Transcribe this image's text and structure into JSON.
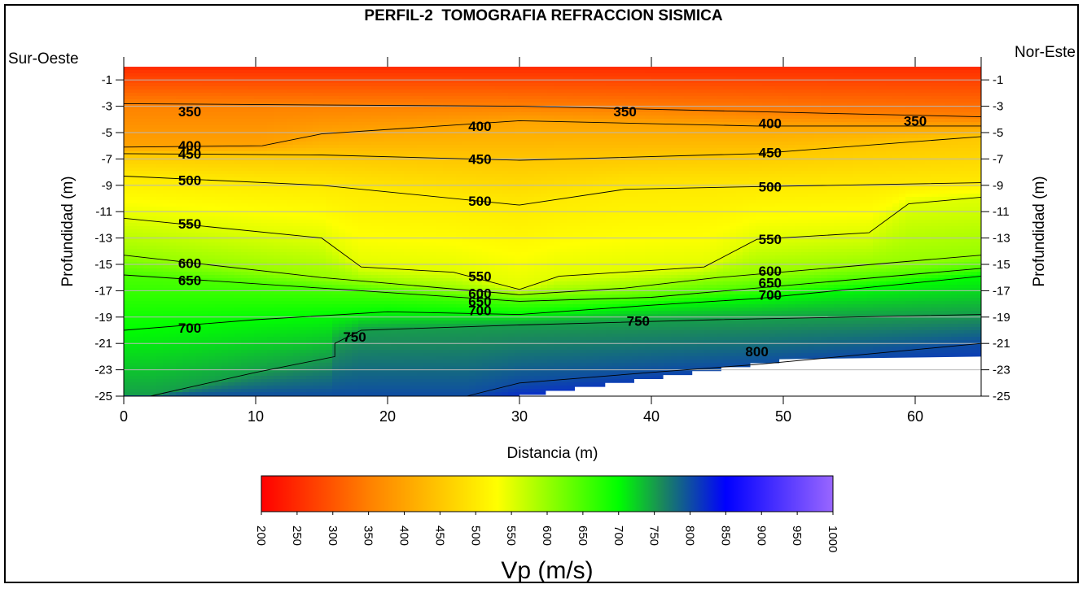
{
  "chart_data": {
    "type": "heatmap",
    "title": "PERFIL-2  TOMOGRAFIA REFRACCION SISMICA",
    "left_label": "Sur-Oeste",
    "right_label": "Nor-Este",
    "xlabel": "Distancia (m)",
    "ylabel": "Profundidad (m)",
    "xlim": [
      0,
      65
    ],
    "ylim": [
      -25,
      0
    ],
    "x_ticks": [
      0,
      10,
      20,
      30,
      40,
      50,
      60
    ],
    "y_ticks": [
      -1,
      -3,
      -5,
      -7,
      -9,
      -11,
      -13,
      -15,
      -17,
      -19,
      -21,
      -23,
      -25
    ],
    "grid": true,
    "colorbar": {
      "title": "Vp (m/s)",
      "min": 200,
      "max": 1000,
      "ticks": [
        200,
        250,
        300,
        350,
        400,
        450,
        500,
        550,
        600,
        650,
        700,
        750,
        800,
        850,
        900,
        950,
        1000
      ],
      "colors": [
        {
          "value": 200,
          "color": "#ff0000"
        },
        {
          "value": 350,
          "color": "#ff8000"
        },
        {
          "value": 530,
          "color": "#ffff00"
        },
        {
          "value": 700,
          "color": "#00ff00"
        },
        {
          "value": 760,
          "color": "#1a8a5a"
        },
        {
          "value": 850,
          "color": "#0000ff"
        },
        {
          "value": 1000,
          "color": "#9966ff"
        }
      ]
    },
    "contours": [
      {
        "value": 350,
        "points": [
          [
            0,
            -2.8
          ],
          [
            30,
            -3.0
          ],
          [
            65,
            -3.8
          ]
        ],
        "labels": [
          [
            5,
            -3.4
          ],
          [
            38,
            -3.4
          ],
          [
            60,
            -4.1
          ]
        ]
      },
      {
        "value": 400,
        "points": [
          [
            0,
            -6.1
          ],
          [
            10.5,
            -6.0
          ],
          [
            15,
            -5.1
          ],
          [
            30,
            -4.1
          ],
          [
            48,
            -4.5
          ],
          [
            65,
            -4.5
          ]
        ],
        "labels": [
          [
            5,
            -6.0
          ],
          [
            27,
            -4.5
          ],
          [
            49,
            -4.3
          ]
        ]
      },
      {
        "value": 450,
        "points": [
          [
            0,
            -6.6
          ],
          [
            15,
            -6.7
          ],
          [
            30,
            -7.1
          ],
          [
            48,
            -6.6
          ],
          [
            65,
            -5.3
          ]
        ],
        "labels": [
          [
            5,
            -6.6
          ],
          [
            27,
            -7.0
          ],
          [
            49,
            -6.5
          ]
        ]
      },
      {
        "value": 500,
        "points": [
          [
            0,
            -8.3
          ],
          [
            15,
            -9.0
          ],
          [
            30,
            -10.5
          ],
          [
            38,
            -9.3
          ],
          [
            48,
            -9.1
          ],
          [
            65,
            -8.8
          ]
        ],
        "labels": [
          [
            5,
            -8.6
          ],
          [
            27,
            -10.2
          ],
          [
            49,
            -9.1
          ]
        ]
      },
      {
        "value": 550,
        "points": [
          [
            0,
            -11.5
          ],
          [
            15,
            -13.0
          ],
          [
            18,
            -15.2
          ],
          [
            25,
            -15.6
          ],
          [
            30,
            -16.9
          ],
          [
            33,
            -15.9
          ],
          [
            44,
            -15.2
          ],
          [
            48,
            -13.1
          ],
          [
            56.5,
            -12.6
          ],
          [
            59.5,
            -10.4
          ],
          [
            65,
            -9.9
          ]
        ],
        "labels": [
          [
            5,
            -11.9
          ],
          [
            27,
            -15.9
          ],
          [
            49,
            -13.1
          ]
        ]
      },
      {
        "value": 600,
        "points": [
          [
            0,
            -14.3
          ],
          [
            15,
            -16.0
          ],
          [
            30,
            -17.3
          ],
          [
            38,
            -16.8
          ],
          [
            45,
            -16.0
          ],
          [
            65,
            -14.3
          ]
        ],
        "labels": [
          [
            5,
            -14.9
          ],
          [
            27,
            -17.2
          ],
          [
            49,
            -15.5
          ]
        ]
      },
      {
        "value": 650,
        "points": [
          [
            0,
            -15.8
          ],
          [
            15,
            -16.8
          ],
          [
            30,
            -17.8
          ],
          [
            40,
            -17.5
          ],
          [
            65,
            -15.3
          ]
        ],
        "labels": [
          [
            5,
            -16.2
          ],
          [
            27,
            -17.8
          ],
          [
            49,
            -16.4
          ]
        ]
      },
      {
        "value": 700,
        "points": [
          [
            0,
            -20.0
          ],
          [
            10,
            -19.2
          ],
          [
            20,
            -18.6
          ],
          [
            30,
            -18.8
          ],
          [
            40,
            -18.1
          ],
          [
            48,
            -17.6
          ],
          [
            65,
            -15.9
          ]
        ],
        "labels": [
          [
            5,
            -19.8
          ],
          [
            27,
            -18.5
          ],
          [
            49,
            -17.3
          ]
        ]
      },
      {
        "value": 750,
        "points": [
          [
            2,
            -25.0
          ],
          [
            10,
            -23.2
          ],
          [
            16,
            -22.0
          ],
          [
            16,
            -21.0
          ],
          [
            18,
            -20.0
          ],
          [
            30,
            -19.6
          ],
          [
            45,
            -19.2
          ],
          [
            65,
            -18.8
          ]
        ],
        "labels": [
          [
            17.5,
            -20.5
          ],
          [
            39,
            -19.3
          ]
        ]
      },
      {
        "value": 800,
        "points": [
          [
            26,
            -25.0
          ],
          [
            30,
            -24.0
          ],
          [
            40,
            -23.2
          ],
          [
            48,
            -22.6
          ],
          [
            65,
            -21.0
          ]
        ],
        "labels": [
          [
            48,
            -21.6
          ]
        ]
      }
    ],
    "blank_region": [
      [
        30,
        -25
      ],
      [
        30,
        -24.9
      ],
      [
        32,
        -24.9
      ],
      [
        32,
        -24.6
      ],
      [
        34.2,
        -24.6
      ],
      [
        34.2,
        -24.3
      ],
      [
        36.5,
        -24.3
      ],
      [
        36.5,
        -24.0
      ],
      [
        38.7,
        -24.0
      ],
      [
        38.7,
        -23.7
      ],
      [
        40.9,
        -23.7
      ],
      [
        40.9,
        -23.4
      ],
      [
        43.1,
        -23.4
      ],
      [
        43.1,
        -23.1
      ],
      [
        45.3,
        -23.1
      ],
      [
        45.3,
        -22.8
      ],
      [
        47.5,
        -22.8
      ],
      [
        47.5,
        -22.5
      ],
      [
        49.7,
        -22.5
      ],
      [
        49.7,
        -22.2
      ],
      [
        65,
        -22.0
      ],
      [
        65,
        -25
      ]
    ]
  }
}
